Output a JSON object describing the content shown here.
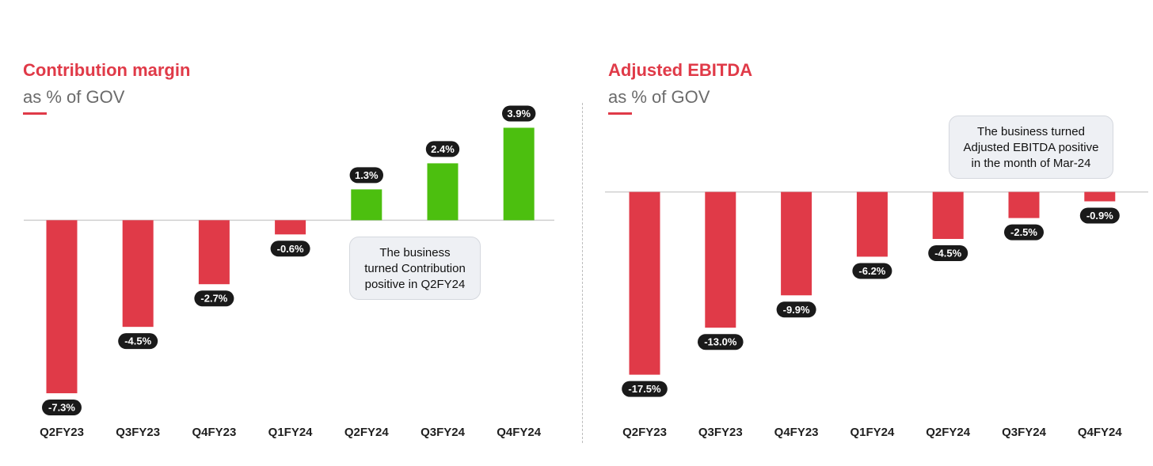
{
  "chart_data": [
    {
      "type": "bar",
      "title": "Contribution margin",
      "subtitle": "as % of GOV",
      "categories": [
        "Q2FY23",
        "Q3FY23",
        "Q4FY23",
        "Q1FY24",
        "Q2FY24",
        "Q3FY24",
        "Q4FY24"
      ],
      "values": [
        -7.3,
        -4.5,
        -2.7,
        -0.6,
        1.3,
        2.4,
        3.9
      ],
      "value_labels": [
        "-7.3%",
        "-4.5%",
        "-2.7%",
        "-0.6%",
        "1.3%",
        "2.4%",
        "3.9%"
      ],
      "ylim": [
        -8.5,
        4.8
      ],
      "annotation": [
        "The business",
        "turned Contribution",
        "positive in Q2FY24"
      ],
      "colors": {
        "negative": "#e03a48",
        "positive": "#4cbf0f"
      }
    },
    {
      "type": "bar",
      "title": "Adjusted EBITDA",
      "subtitle": "as % of GOV",
      "categories": [
        "Q2FY23",
        "Q3FY23",
        "Q4FY23",
        "Q1FY24",
        "Q2FY24",
        "Q3FY24",
        "Q4FY24"
      ],
      "values": [
        -17.5,
        -13.0,
        -9.9,
        -6.2,
        -4.5,
        -2.5,
        -0.9
      ],
      "value_labels": [
        "-17.5%",
        "-13.0%",
        "-9.9%",
        "-6.2%",
        "-4.5%",
        "-2.5%",
        "-0.9%"
      ],
      "ylim": [
        -20,
        5
      ],
      "annotation": [
        "The business turned",
        "Adjusted EBITDA positive",
        "in the month of Mar-24"
      ],
      "colors": {
        "negative": "#e03a48",
        "positive": "#4cbf0f"
      }
    }
  ],
  "colors": {
    "accent": "#e03a48",
    "pill": "#1a1a1a",
    "axis": "#cfcfcf",
    "callout_bg": "#eef0f4"
  }
}
